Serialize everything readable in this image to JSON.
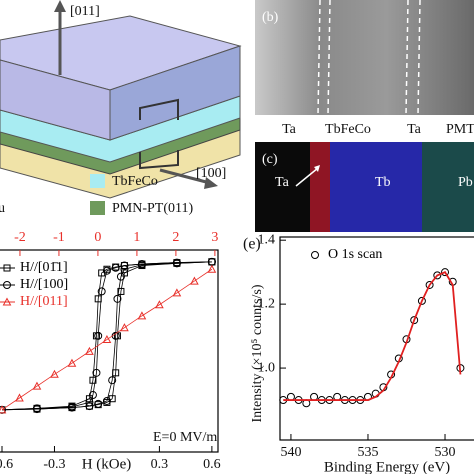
{
  "figure": {
    "schematic": {
      "axis_up": "[011]",
      "axis_side": "[100]",
      "legend": [
        {
          "label": "TbFeCo",
          "color": "#a8ecf2"
        },
        {
          "label": "PMN-PT(011)",
          "color": "#6f9a5c"
        },
        {
          "label": "u"
        }
      ]
    },
    "panel_b": {
      "label": "(b)",
      "layers": [
        "Ta",
        "TbFeCo",
        "Ta",
        "PMT"
      ]
    },
    "panel_c": {
      "label": "(c)",
      "texts": [
        "Ta",
        "Tb",
        "Pb"
      ]
    },
    "panel_e": {
      "label": "(e)"
    }
  },
  "chart_data": [
    {
      "type": "scatter",
      "xlabel": "H (kOe)",
      "annotation": "E=0 MV/m",
      "legend": "upper left",
      "xlim": [
        -0.64,
        0.635
      ],
      "xticks": [
        -0.6,
        -0.3,
        0.3,
        0.6
      ],
      "x2lim": [
        -2.64,
        3.08
      ],
      "x2ticks": [
        -2,
        -1,
        0,
        1,
        2,
        3
      ],
      "x2color": "#e8302a",
      "ylim": [
        -1.57,
        1.16
      ],
      "series": [
        {
          "name": "H//[01̄1]",
          "color": "#000000",
          "marker": "square",
          "line": true,
          "x": [
            0.6,
            0.4,
            0.2,
            0.1,
            0.05,
            0,
            -0.03,
            -0.05,
            -0.06,
            -0.08,
            -0.1,
            -0.2,
            -0.4,
            -0.6,
            -0.4,
            -0.2,
            -0.1,
            -0.05,
            0,
            0.03,
            0.05,
            0.06,
            0.08,
            0.1,
            0.2,
            0.4,
            0.6
          ],
          "values": [
            1,
            0.99,
            0.97,
            0.95,
            0.93,
            0.9,
            0.85,
            0.5,
            0,
            -0.6,
            -0.85,
            -0.95,
            -0.98,
            -1,
            -0.99,
            -0.97,
            -0.95,
            -0.93,
            -0.9,
            -0.85,
            -0.5,
            0,
            0.6,
            0.85,
            0.95,
            0.98,
            1
          ]
        },
        {
          "name": "H//[100]",
          "color": "#000000",
          "marker": "circle",
          "line": true,
          "x": [
            0.6,
            0.4,
            0.2,
            0.1,
            0.05,
            0,
            -0.03,
            -0.05,
            -0.06,
            -0.08,
            -0.1,
            -0.2,
            -0.4,
            -0.6,
            -0.4,
            -0.2,
            -0.1,
            -0.05,
            0,
            0.03,
            0.05,
            0.06,
            0.08,
            0.1,
            0.2,
            0.4,
            0.6
          ],
          "values": [
            1,
            0.99,
            0.97,
            0.95,
            0.92,
            0.88,
            0.6,
            0,
            -0.5,
            -0.8,
            -0.9,
            -0.96,
            -0.98,
            -1,
            -0.99,
            -0.97,
            -0.95,
            -0.92,
            -0.88,
            -0.6,
            0,
            0.5,
            0.8,
            0.9,
            0.96,
            0.98,
            1
          ]
        },
        {
          "name": "H//[011]",
          "color": "#e8302a",
          "marker": "triangle",
          "line": true,
          "x": [
            -0.6,
            -0.5,
            -0.4,
            -0.3,
            -0.2,
            -0.1,
            0,
            0.1,
            0.2,
            0.3,
            0.4,
            0.5,
            0.6
          ],
          "values": [
            -1,
            -0.84,
            -0.68,
            -0.52,
            -0.37,
            -0.21,
            -0.05,
            0.11,
            0.27,
            0.42,
            0.58,
            0.74,
            0.9
          ]
        }
      ]
    },
    {
      "type": "scatter",
      "xlabel": "Binding Energy (eV)",
      "ylabel": "Intensity (×10⁵ counts/s)",
      "legend": "upper left",
      "xlim": [
        540.71,
        527.47
      ],
      "xticks": [
        540,
        535,
        530
      ],
      "ylim": [
        0.775,
        1.41
      ],
      "yticks": [
        1.4,
        1.2,
        {
          "value": 1,
          "label": "1.0"
        }
      ],
      "x": [
        540.5,
        540,
        539.5,
        539,
        538.5,
        538,
        537.5,
        537,
        536.5,
        536,
        535.5,
        535,
        534.5,
        534,
        533.5,
        533,
        532.5,
        532,
        531.5,
        531,
        530.5,
        530,
        529.5,
        529
      ],
      "series": [
        {
          "name": "O 1s scan",
          "color": "#000000",
          "marker": "circle",
          "values": [
            0.9,
            0.91,
            0.9,
            0.89,
            0.91,
            0.9,
            0.9,
            0.91,
            0.9,
            0.9,
            0.9,
            0.91,
            0.92,
            0.94,
            0.98,
            1.03,
            1.09,
            1.15,
            1.21,
            1.26,
            1.29,
            1.3,
            1.27,
            1
          ]
        },
        {
          "color": "#e02020",
          "line": true,
          "values": [
            0.9,
            0.9,
            0.9,
            0.9,
            0.9,
            0.9,
            0.9,
            0.9,
            0.9,
            0.9,
            0.9,
            0.9,
            0.91,
            0.93,
            0.97,
            1.02,
            1.08,
            1.15,
            1.21,
            1.26,
            1.29,
            1.3,
            1.26,
            0.98
          ]
        }
      ]
    }
  ]
}
